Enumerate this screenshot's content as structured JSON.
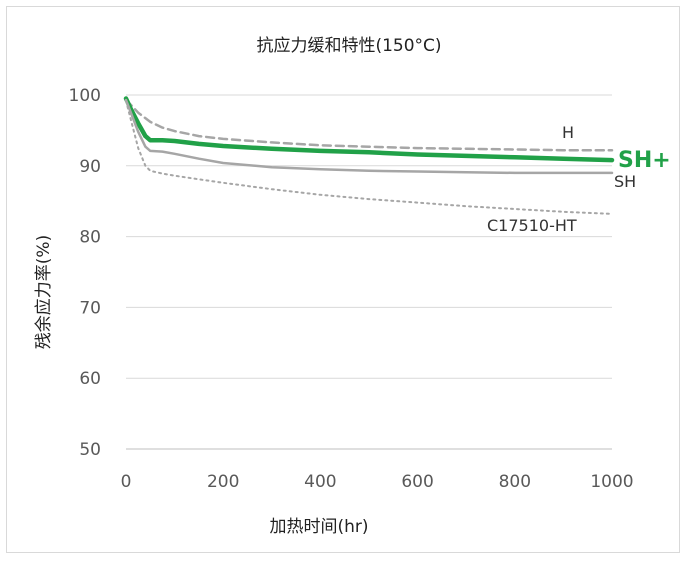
{
  "chart_data": {
    "type": "line",
    "title": "抗应力缓和特性(150°C)",
    "xlabel": "加热时间(hr)",
    "ylabel": "残余应力率(%)",
    "xlim": [
      0,
      1000
    ],
    "ylim": [
      50,
      100
    ],
    "xticks": [
      0,
      200,
      400,
      600,
      800,
      1000
    ],
    "yticks": [
      50,
      60,
      70,
      80,
      90,
      100
    ],
    "grid": "horizontal",
    "legend": "inline labels at right end of lines",
    "series": [
      {
        "name": "H",
        "color": "#a6a6a6",
        "style": "dashed",
        "x": [
          0,
          10,
          25,
          50,
          75,
          100,
          150,
          200,
          300,
          400,
          500,
          600,
          700,
          800,
          900,
          1000
        ],
        "y": [
          99.3,
          98.6,
          97.5,
          96.2,
          95.4,
          94.9,
          94.2,
          93.8,
          93.3,
          92.9,
          92.7,
          92.5,
          92.4,
          92.3,
          92.2,
          92.2
        ]
      },
      {
        "name": "SH+",
        "color": "#21a148",
        "style": "solid-bold",
        "x": [
          0,
          10,
          25,
          40,
          50,
          75,
          100,
          150,
          200,
          300,
          400,
          500,
          600,
          700,
          800,
          900,
          1000
        ],
        "y": [
          99.5,
          98.0,
          96.0,
          94.2,
          93.6,
          93.6,
          93.5,
          93.1,
          92.8,
          92.4,
          92.1,
          91.9,
          91.6,
          91.4,
          91.2,
          91.0,
          90.8
        ]
      },
      {
        "name": "SH",
        "color": "#a6a6a6",
        "style": "solid",
        "x": [
          0,
          10,
          25,
          40,
          50,
          75,
          100,
          150,
          200,
          300,
          400,
          500,
          600,
          700,
          800,
          900,
          1000
        ],
        "y": [
          99.3,
          97.5,
          94.8,
          92.7,
          92.1,
          92.0,
          91.7,
          91.0,
          90.4,
          89.8,
          89.5,
          89.3,
          89.2,
          89.1,
          89.0,
          89.0,
          89.0
        ]
      },
      {
        "name": "C17510-HT",
        "color": "#a6a6a6",
        "style": "dotted",
        "x": [
          0,
          10,
          25,
          40,
          50,
          75,
          100,
          150,
          200,
          300,
          400,
          500,
          600,
          700,
          800,
          900,
          1000
        ],
        "y": [
          99.2,
          96.5,
          92.5,
          90.0,
          89.3,
          88.9,
          88.6,
          88.1,
          87.6,
          86.7,
          85.9,
          85.3,
          84.8,
          84.3,
          83.9,
          83.5,
          83.2
        ]
      }
    ]
  }
}
